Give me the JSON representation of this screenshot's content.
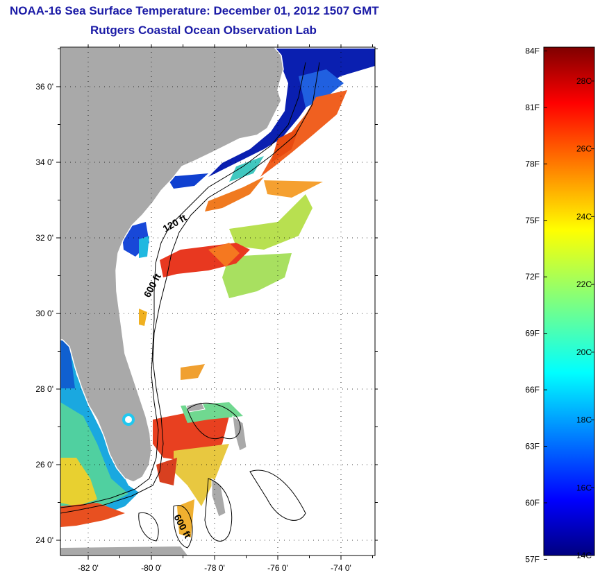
{
  "header": {
    "title": "NOAA-16 Sea Surface Temperature:  December 01, 2012 1507 GMT",
    "subtitle": "Rutgers Coastal Ocean Observation Lab"
  },
  "map": {
    "lon_ticks": [
      {
        "value": -82,
        "label": "-82 0'"
      },
      {
        "value": -80,
        "label": "-80 0'"
      },
      {
        "value": -78,
        "label": "-78 0'"
      },
      {
        "value": -76,
        "label": "-76 0'"
      },
      {
        "value": -74,
        "label": "-74 0'"
      }
    ],
    "lat_ticks": [
      {
        "value": 36,
        "label": "36 0'"
      },
      {
        "value": 34,
        "label": "34 0'"
      },
      {
        "value": 32,
        "label": "32 0'"
      },
      {
        "value": 30,
        "label": "30 0'"
      },
      {
        "value": 28,
        "label": "28 0'"
      },
      {
        "value": 26,
        "label": "26 0'"
      },
      {
        "value": 24,
        "label": "24 0'"
      }
    ],
    "contour_labels": [
      "120 ft",
      "600 ft",
      "600 ft"
    ],
    "colors": {
      "land": "#a9a9a9",
      "no_data": "#ffffff"
    }
  },
  "colorbar": {
    "min_c": 14,
    "max_c": 29,
    "fahrenheit_labels": [
      "84F",
      "81F",
      "78F",
      "75F",
      "72F",
      "69F",
      "66F",
      "63F",
      "60F",
      "57F"
    ],
    "celsius_labels": [
      "28C",
      "26C",
      "24C",
      "22C",
      "20C",
      "18C",
      "16C",
      "14C"
    ],
    "colormap": "jet"
  }
}
